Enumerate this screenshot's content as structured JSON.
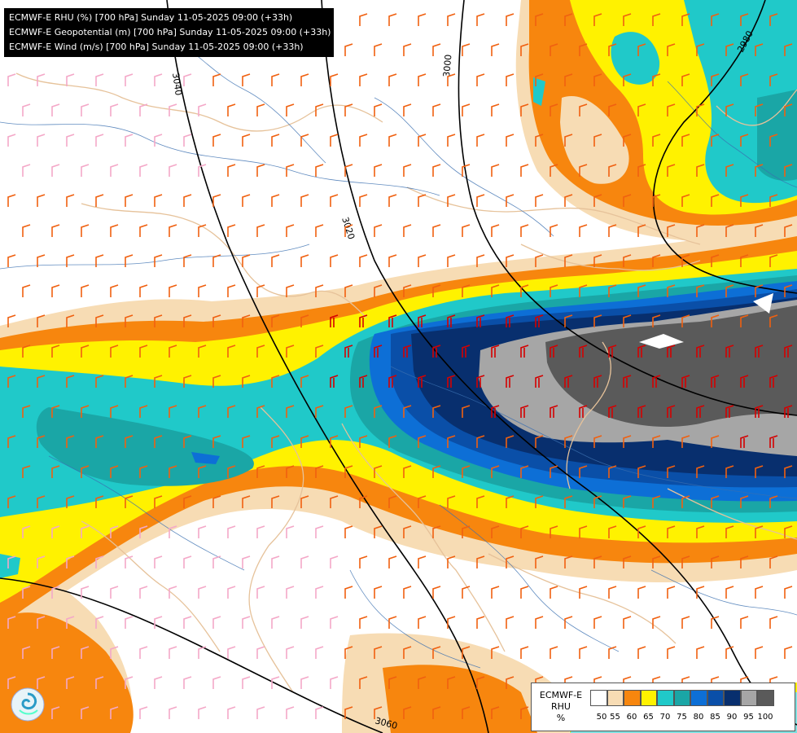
{
  "header": {
    "lines": [
      "ECMWF-E RHU (%) [700 hPa] Sunday 11-05-2025 09:00 (+33h)",
      "ECMWF-E Geopotential (m) [700 hPa] Sunday 11-05-2025 09:00 (+33h)",
      "ECMWF-E Wind (m/s) [700 hPa] Sunday 11-05-2025 09:00 (+33h)"
    ]
  },
  "contours": {
    "labels": [
      "3040",
      "3020",
      "3000",
      "2980",
      "3060"
    ]
  },
  "legend": {
    "name_line1": "ECMWF-E",
    "name_line2": "RHU",
    "unit": "%",
    "ticks": [
      "50",
      "55",
      "60",
      "65",
      "70",
      "75",
      "80",
      "85",
      "90",
      "95",
      "100"
    ],
    "colors": [
      "#ffffff",
      "#f7dcb4",
      "#f7860e",
      "#fff200",
      "#20c9c9",
      "#1aa6a6",
      "#0d6fd6",
      "#0a4fa8",
      "#082f6e",
      "#a6a6a6",
      "#5a5a5a"
    ]
  },
  "logo": {
    "icon": "ecmwf-logo-icon"
  }
}
